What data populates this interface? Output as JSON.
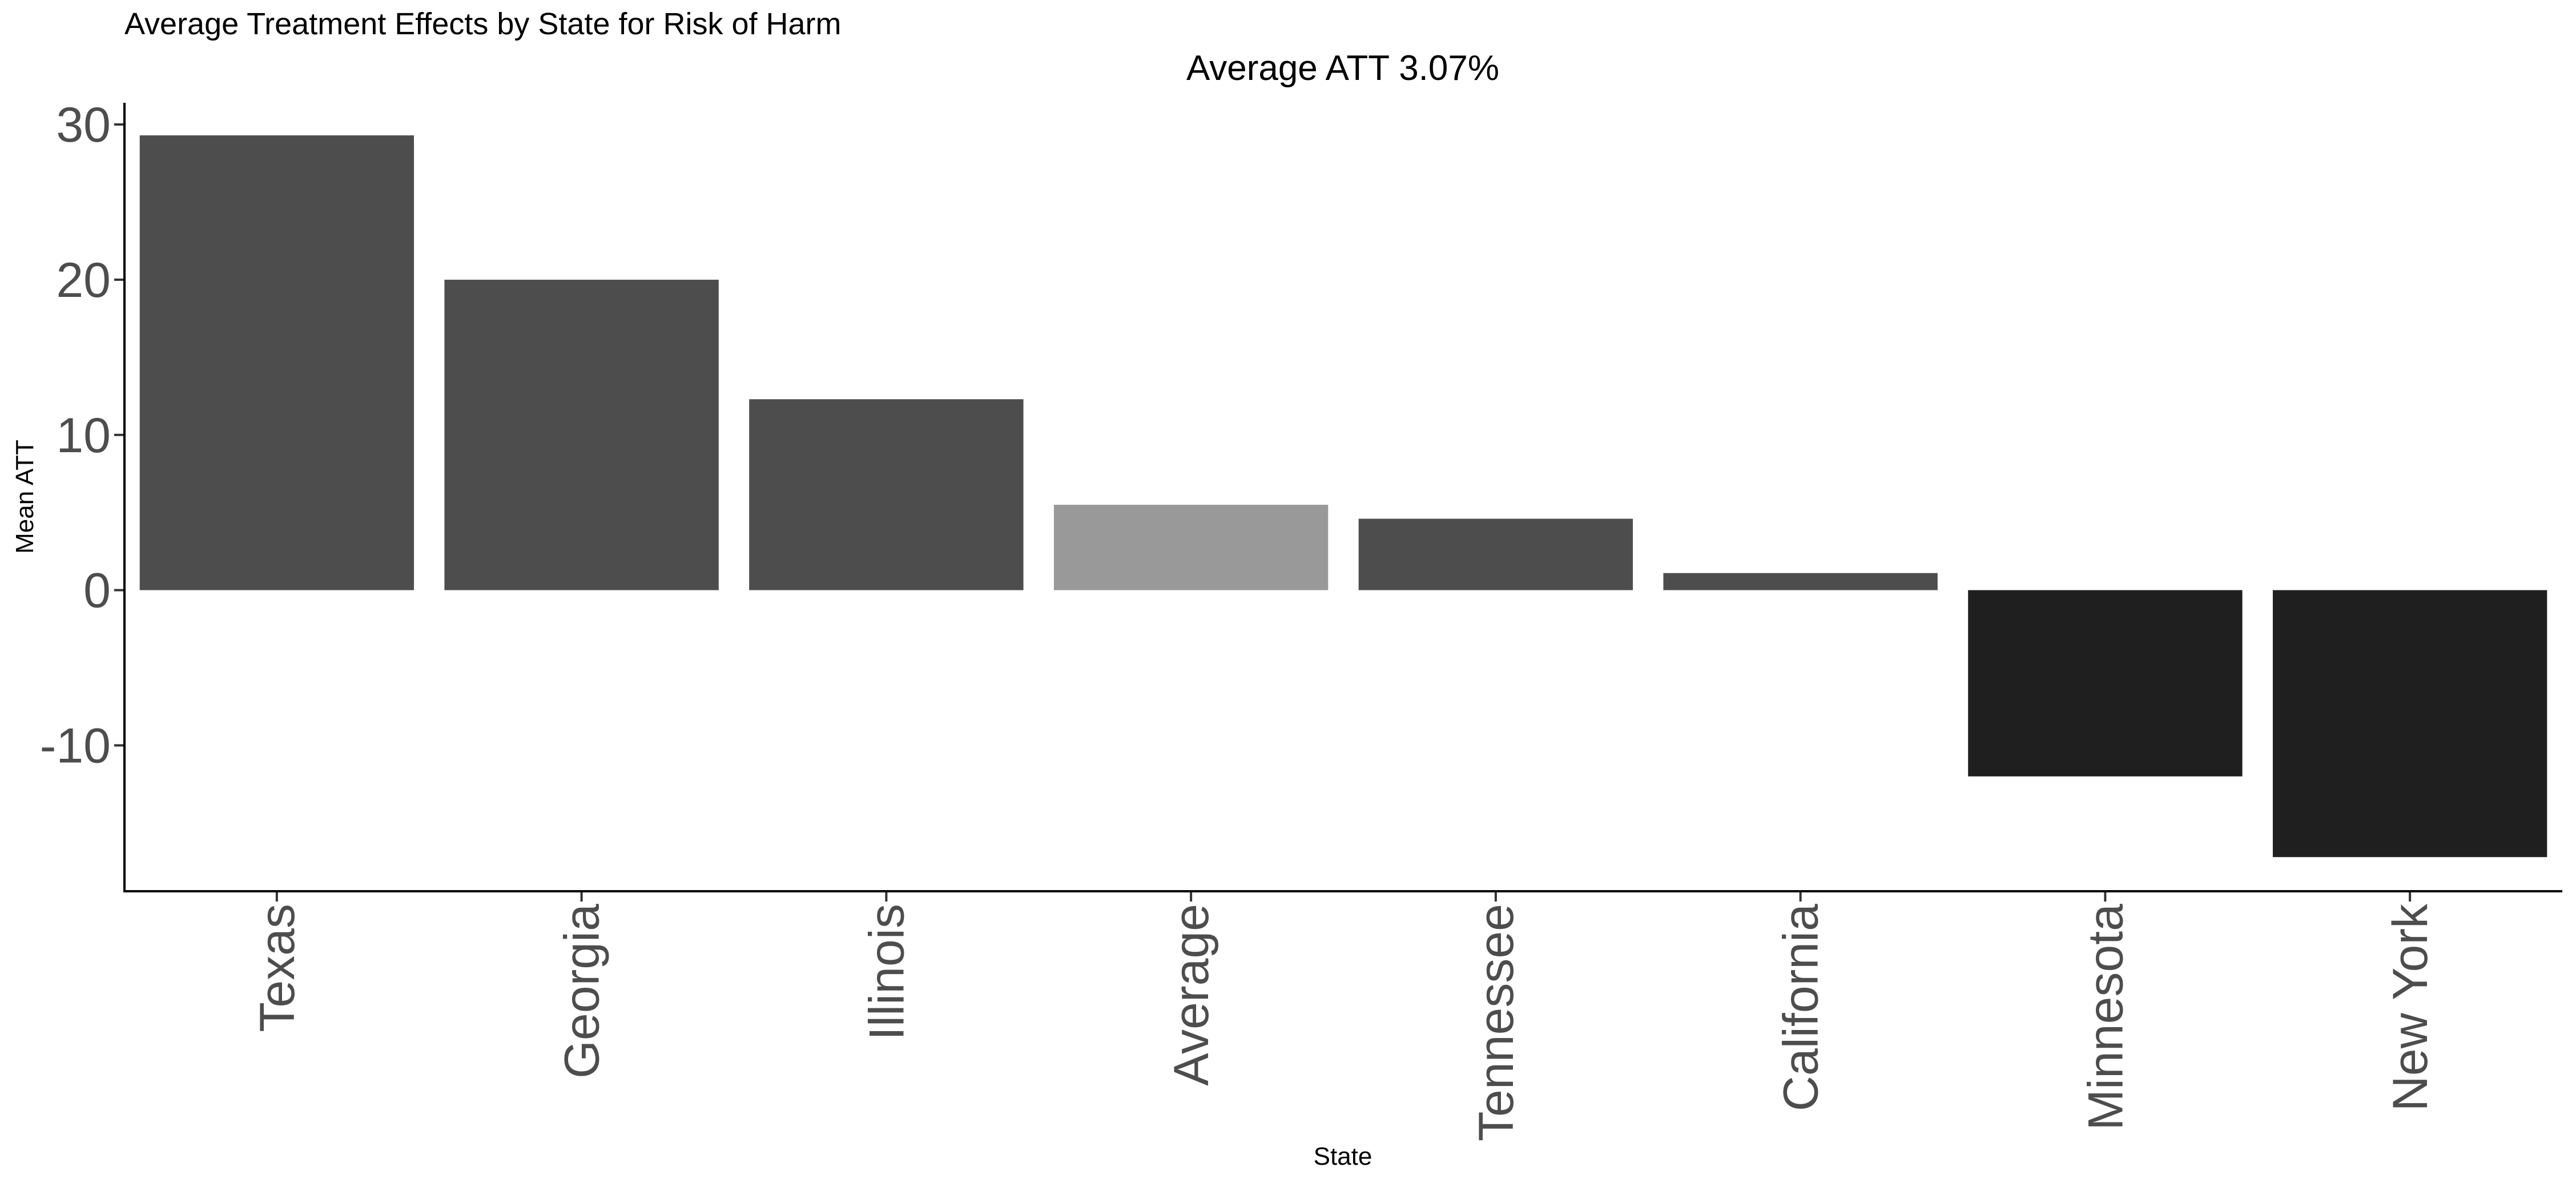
{
  "chart_data": {
    "type": "bar",
    "title": "Average Treatment Effects by State for Risk of Harm",
    "subtitle": "Average ATT 3.07%",
    "xlabel": "State",
    "ylabel": "Mean ATT",
    "categories": [
      "Texas",
      "Georgia",
      "Illinois",
      "Average",
      "Tennessee",
      "California",
      "Minnesota",
      "New York"
    ],
    "values": [
      29.3,
      20.0,
      12.3,
      5.5,
      4.6,
      1.1,
      -12.0,
      -17.2
    ],
    "bar_colors": [
      "#4d4d4d",
      "#4d4d4d",
      "#4d4d4d",
      "#999999",
      "#4d4d4d",
      "#4d4d4d",
      "#1f1f1f",
      "#1f1f1f"
    ],
    "ylim": [
      -19.4,
      31.4
    ],
    "yticks": [
      -10,
      0,
      10,
      20,
      30
    ],
    "ytick_labels": [
      "-10",
      "0",
      "10",
      "20",
      "30"
    ],
    "grid": false,
    "legend": "none"
  }
}
